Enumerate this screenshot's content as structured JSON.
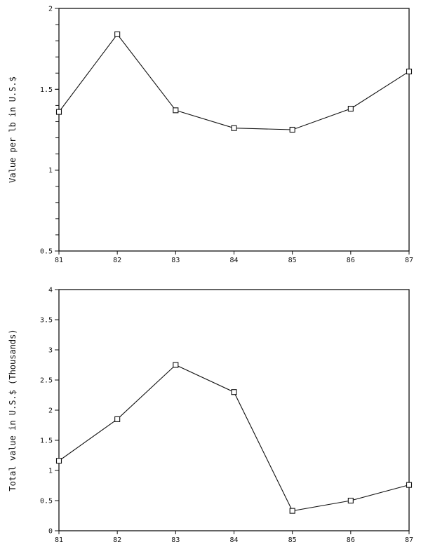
{
  "chart_data": [
    {
      "type": "line",
      "title": "",
      "xlabel": "",
      "ylabel": "Value per lb in U.S.$",
      "categories": [
        "81",
        "82",
        "83",
        "84",
        "85",
        "86",
        "87"
      ],
      "series": [
        {
          "values": [
            1.36,
            1.84,
            1.37,
            1.26,
            1.25,
            1.38,
            1.61
          ]
        }
      ],
      "ylim": [
        0.5,
        2
      ],
      "yticks": [
        "0.5",
        "1",
        "1.5",
        "2"
      ],
      "ytick_values": [
        0.5,
        1,
        1.5,
        2
      ],
      "minor_tick_step": 0.1,
      "marker": "square",
      "grid": false,
      "color": "#111111"
    },
    {
      "type": "line",
      "title": "",
      "xlabel": "",
      "ylabel": "Total value in U.S.$ (Thousands)",
      "categories": [
        "81",
        "82",
        "83",
        "84",
        "85",
        "86",
        "87"
      ],
      "series": [
        {
          "values": [
            1.16,
            1.85,
            2.75,
            2.3,
            0.33,
            0.5,
            0.76
          ]
        }
      ],
      "ylim": [
        0,
        4
      ],
      "yticks": [
        "0",
        "0.5",
        "1",
        "1.5",
        "2",
        "2.5",
        "3",
        "3.5",
        "4"
      ],
      "ytick_values": [
        0,
        0.5,
        1,
        1.5,
        2,
        2.5,
        3,
        3.5,
        4
      ],
      "marker": "square",
      "grid": false,
      "color": "#111111"
    }
  ]
}
